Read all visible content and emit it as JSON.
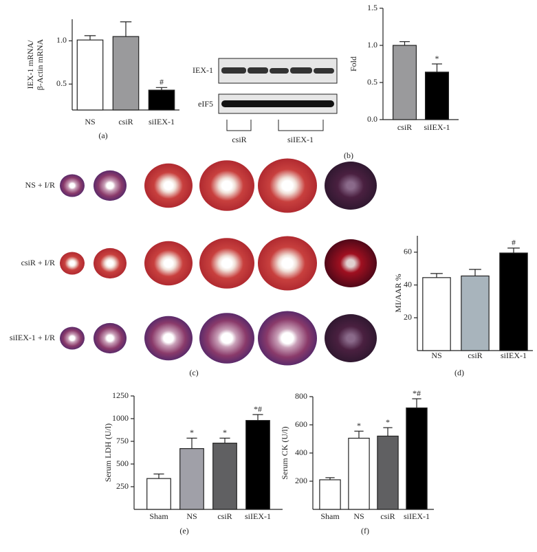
{
  "chart_data": [
    {
      "type": "bar",
      "label": "(a)",
      "y_label": [
        "IEX-1 mRNA/",
        "β-Actin mRNA"
      ],
      "categories": [
        "NS",
        "csiR",
        "siIEX-1"
      ],
      "values": [
        1.01,
        1.05,
        0.43
      ],
      "errors": [
        0.05,
        0.17,
        0.03
      ],
      "colors": [
        "#ffffff",
        "#9a9a9c",
        "#000000"
      ],
      "annotations": [
        null,
        null,
        "#"
      ],
      "ylim": [
        0.2,
        1.25
      ],
      "yticks": [
        0.5,
        {
          "value": 1,
          "label": "1.0"
        }
      ]
    },
    {
      "type": "bar",
      "label": "(b)",
      "y_label": [
        "Fold"
      ],
      "categories": [
        "csiR",
        "siIEX-1"
      ],
      "values": [
        1.0,
        0.64
      ],
      "errors": [
        0.05,
        0.11
      ],
      "colors": [
        "#9a9a9c",
        "#000000"
      ],
      "annotations": [
        null,
        "*"
      ],
      "ylim": [
        0,
        1.5
      ],
      "yticks": [
        {
          "value": 0,
          "label": "0.0"
        },
        0.5,
        {
          "value": 1,
          "label": "1.0"
        },
        1.5
      ]
    },
    {
      "type": "bar",
      "label": "(d)",
      "y_label": [
        "MI/AAR %"
      ],
      "categories": [
        "NS",
        "csiR",
        "siIEX-1"
      ],
      "values": [
        44.5,
        45.5,
        59.5
      ],
      "errors": [
        2.5,
        4,
        3
      ],
      "colors": [
        "#ffffff",
        "#a8b4bc",
        "#000000"
      ],
      "annotations": [
        null,
        null,
        "#"
      ],
      "ylim": [
        0,
        70
      ],
      "yticks": [
        20,
        40,
        60
      ]
    },
    {
      "type": "bar",
      "label": "(e)",
      "y_label": [
        "Serum LDH (U/l)"
      ],
      "categories": [
        "Sham",
        "NS",
        "csiR",
        "siIEX-1"
      ],
      "values": [
        340,
        670,
        730,
        980
      ],
      "errors": [
        50,
        115,
        55,
        65
      ],
      "colors": [
        "#ffffff",
        "#a0a0a8",
        "#606062",
        "#000000"
      ],
      "annotations": [
        null,
        "*",
        "*",
        "*#"
      ],
      "ylim": [
        0,
        1250
      ],
      "yticks": [
        250,
        500,
        750,
        1000,
        1250
      ]
    },
    {
      "type": "bar",
      "label": "(f)",
      "y_label": [
        "Serum CK (U/l)"
      ],
      "categories": [
        "Sham",
        "NS",
        "csiR",
        "siIEX-1"
      ],
      "values": [
        210,
        505,
        520,
        720
      ],
      "errors": [
        15,
        50,
        60,
        65
      ],
      "colors": [
        "#ffffff",
        "#ffffff",
        "#606062",
        "#000000"
      ],
      "annotations": [
        null,
        "*",
        "*",
        "*#"
      ],
      "ylim": [
        0,
        800
      ],
      "yticks": [
        200,
        400,
        600,
        800
      ]
    }
  ],
  "blot": {
    "rows": [
      "IEX-1",
      "eIF5"
    ],
    "groups": [
      "csiR",
      "siIEX-1"
    ],
    "label": "(b)"
  },
  "photos": {
    "rows": [
      "NS + I/R",
      "csiR + I/R",
      "siIEX-1 + I/R"
    ],
    "label": "(c)"
  }
}
